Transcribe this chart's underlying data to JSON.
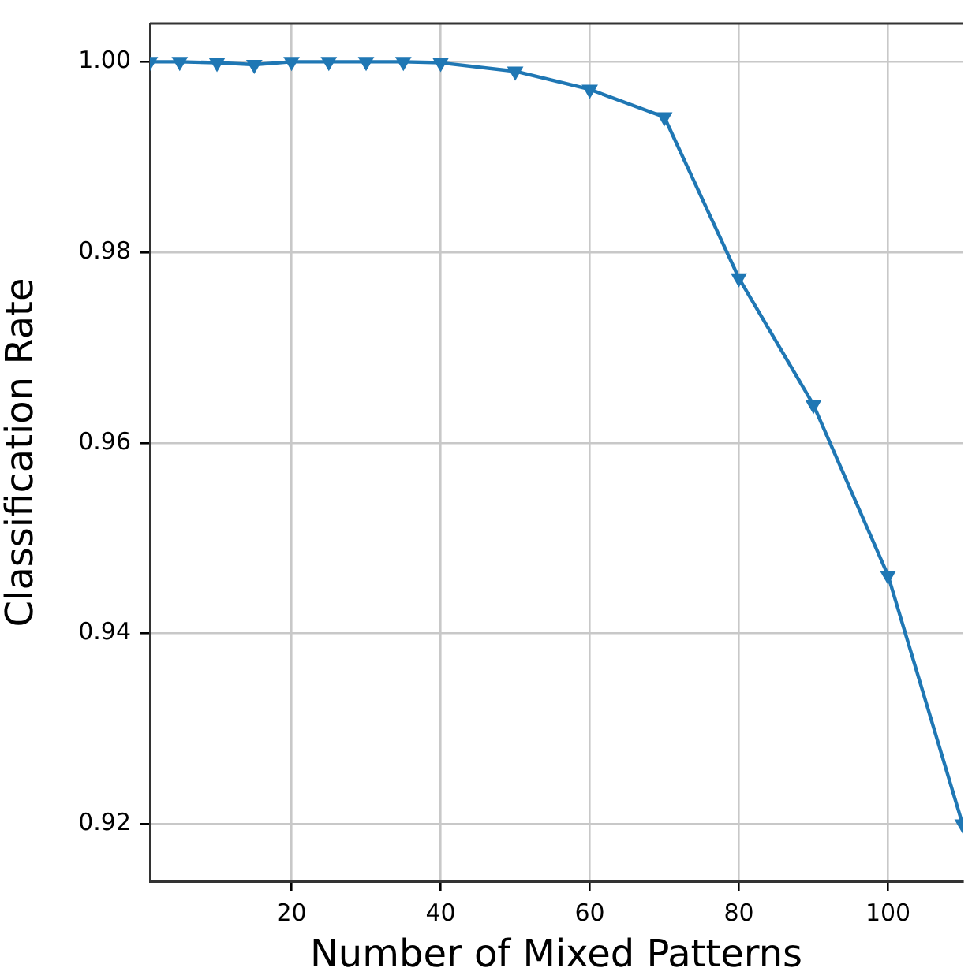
{
  "chart_data": {
    "type": "line",
    "xlabel": "Number of Mixed Patterns",
    "ylabel": "Classification Rate",
    "x": [
      1,
      5,
      10,
      15,
      20,
      25,
      30,
      35,
      40,
      50,
      60,
      70,
      80,
      90,
      100,
      110
    ],
    "series": [
      {
        "color": "#1f77b4",
        "values": [
          1.0,
          1.0,
          0.9999,
          0.9997,
          1.0,
          1.0,
          1.0,
          1.0,
          0.9999,
          0.999,
          0.9971,
          0.9942,
          0.9773,
          0.964,
          0.9461,
          0.92
        ]
      }
    ],
    "xlim": [
      1,
      110
    ],
    "xticks": [
      20,
      40,
      60,
      80,
      100
    ],
    "ylim": [
      0.914,
      1.004
    ],
    "yticks": [
      {
        "value": 0.92,
        "label": "0.92"
      },
      {
        "value": 0.94,
        "label": "0.94"
      },
      {
        "value": 0.96,
        "label": "0.96"
      },
      {
        "value": 0.98,
        "label": "0.98"
      },
      {
        "value": 1.0,
        "label": "1.00"
      }
    ],
    "grid": true,
    "marker": "triangle",
    "line_style": "solid",
    "legend": false
  }
}
